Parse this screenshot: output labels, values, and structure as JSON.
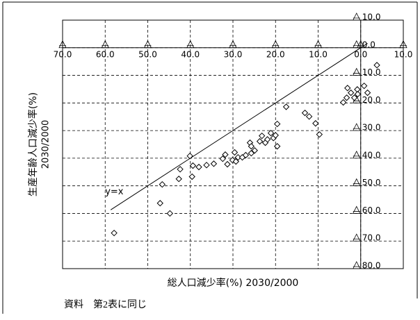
{
  "chart_data": {
    "type": "scatter",
    "xlabel": "総人口減少率(%) 2030/2000",
    "ylabel": "生産年齢人口減少率(%)",
    "ylabel_sub": "2030/2000",
    "note": "資料　第2表に同じ",
    "xlim": [
      -70,
      10
    ],
    "ylim": [
      -80,
      10
    ],
    "xticks": [
      {
        "value": -70,
        "label": "70.0"
      },
      {
        "value": -60,
        "label": "60.0"
      },
      {
        "value": -50,
        "label": "50.0"
      },
      {
        "value": -40,
        "label": "40.0"
      },
      {
        "value": -30,
        "label": "30.0"
      },
      {
        "value": -20,
        "label": "20.0"
      },
      {
        "value": -10,
        "label": "10.0"
      },
      {
        "value": 0,
        "label": "0.0"
      },
      {
        "value": 10,
        "label": "10.0"
      }
    ],
    "yticks": [
      {
        "value": 10,
        "label": "10.0"
      },
      {
        "value": 0,
        "label": "0.0"
      },
      {
        "value": -10,
        "label": "10.0"
      },
      {
        "value": -20,
        "label": "20.0"
      },
      {
        "value": -30,
        "label": "30.0"
      },
      {
        "value": -40,
        "label": "40.0"
      },
      {
        "value": -50,
        "label": "50.0"
      },
      {
        "value": -60,
        "label": "60.0"
      },
      {
        "value": -70,
        "label": "70.0"
      },
      {
        "value": -80,
        "label": "80.0"
      }
    ],
    "grid": true,
    "reference_line": {
      "label": "y=x",
      "x": [
        -58.7,
        1.6
      ],
      "y": [
        -58.7,
        1.6
      ]
    },
    "series": [
      {
        "color": "#000000",
        "x": [
          -57.9,
          -44.8,
          -47.1,
          -46.6,
          -42.7,
          -42.4,
          -40.1,
          -39.6,
          -39.4,
          -38.0,
          -36.2,
          -34.5,
          -32.4,
          -31.8,
          -31.3,
          -30.1,
          -29.6,
          -29.3,
          -28.8,
          -27.8,
          -27.0,
          -25.7,
          -24.9,
          -26.0,
          -25.7,
          -23.7,
          -23.2,
          -22.4,
          -21.9,
          -21.1,
          -20.5,
          -19.6,
          -20.0,
          -19.6,
          -17.5,
          -13.1,
          -12.1,
          -10.6,
          -9.7,
          -4.1,
          -3.3,
          -3.1,
          -2.3,
          -1.5,
          -0.8,
          0.8,
          1.6,
          3.8,
          -0.7
        ],
        "values": [
          -67.1,
          -60.0,
          -56.3,
          -49.5,
          -47.5,
          -44.0,
          -39.2,
          -46.7,
          -42.7,
          -43.2,
          -42.5,
          -42.0,
          -40.2,
          -38.7,
          -42.2,
          -40.7,
          -37.9,
          -41.2,
          -39.7,
          -39.7,
          -38.9,
          -38.2,
          -37.2,
          -34.4,
          -35.7,
          -33.9,
          -31.9,
          -34.4,
          -33.2,
          -30.9,
          -32.7,
          -35.7,
          -31.7,
          -27.6,
          -21.4,
          -23.6,
          -24.9,
          -27.4,
          -31.4,
          -19.8,
          -18.1,
          -14.6,
          -16.3,
          -18.1,
          -15.1,
          -13.8,
          -16.3,
          -6.3,
          -16.8
        ]
      }
    ]
  }
}
